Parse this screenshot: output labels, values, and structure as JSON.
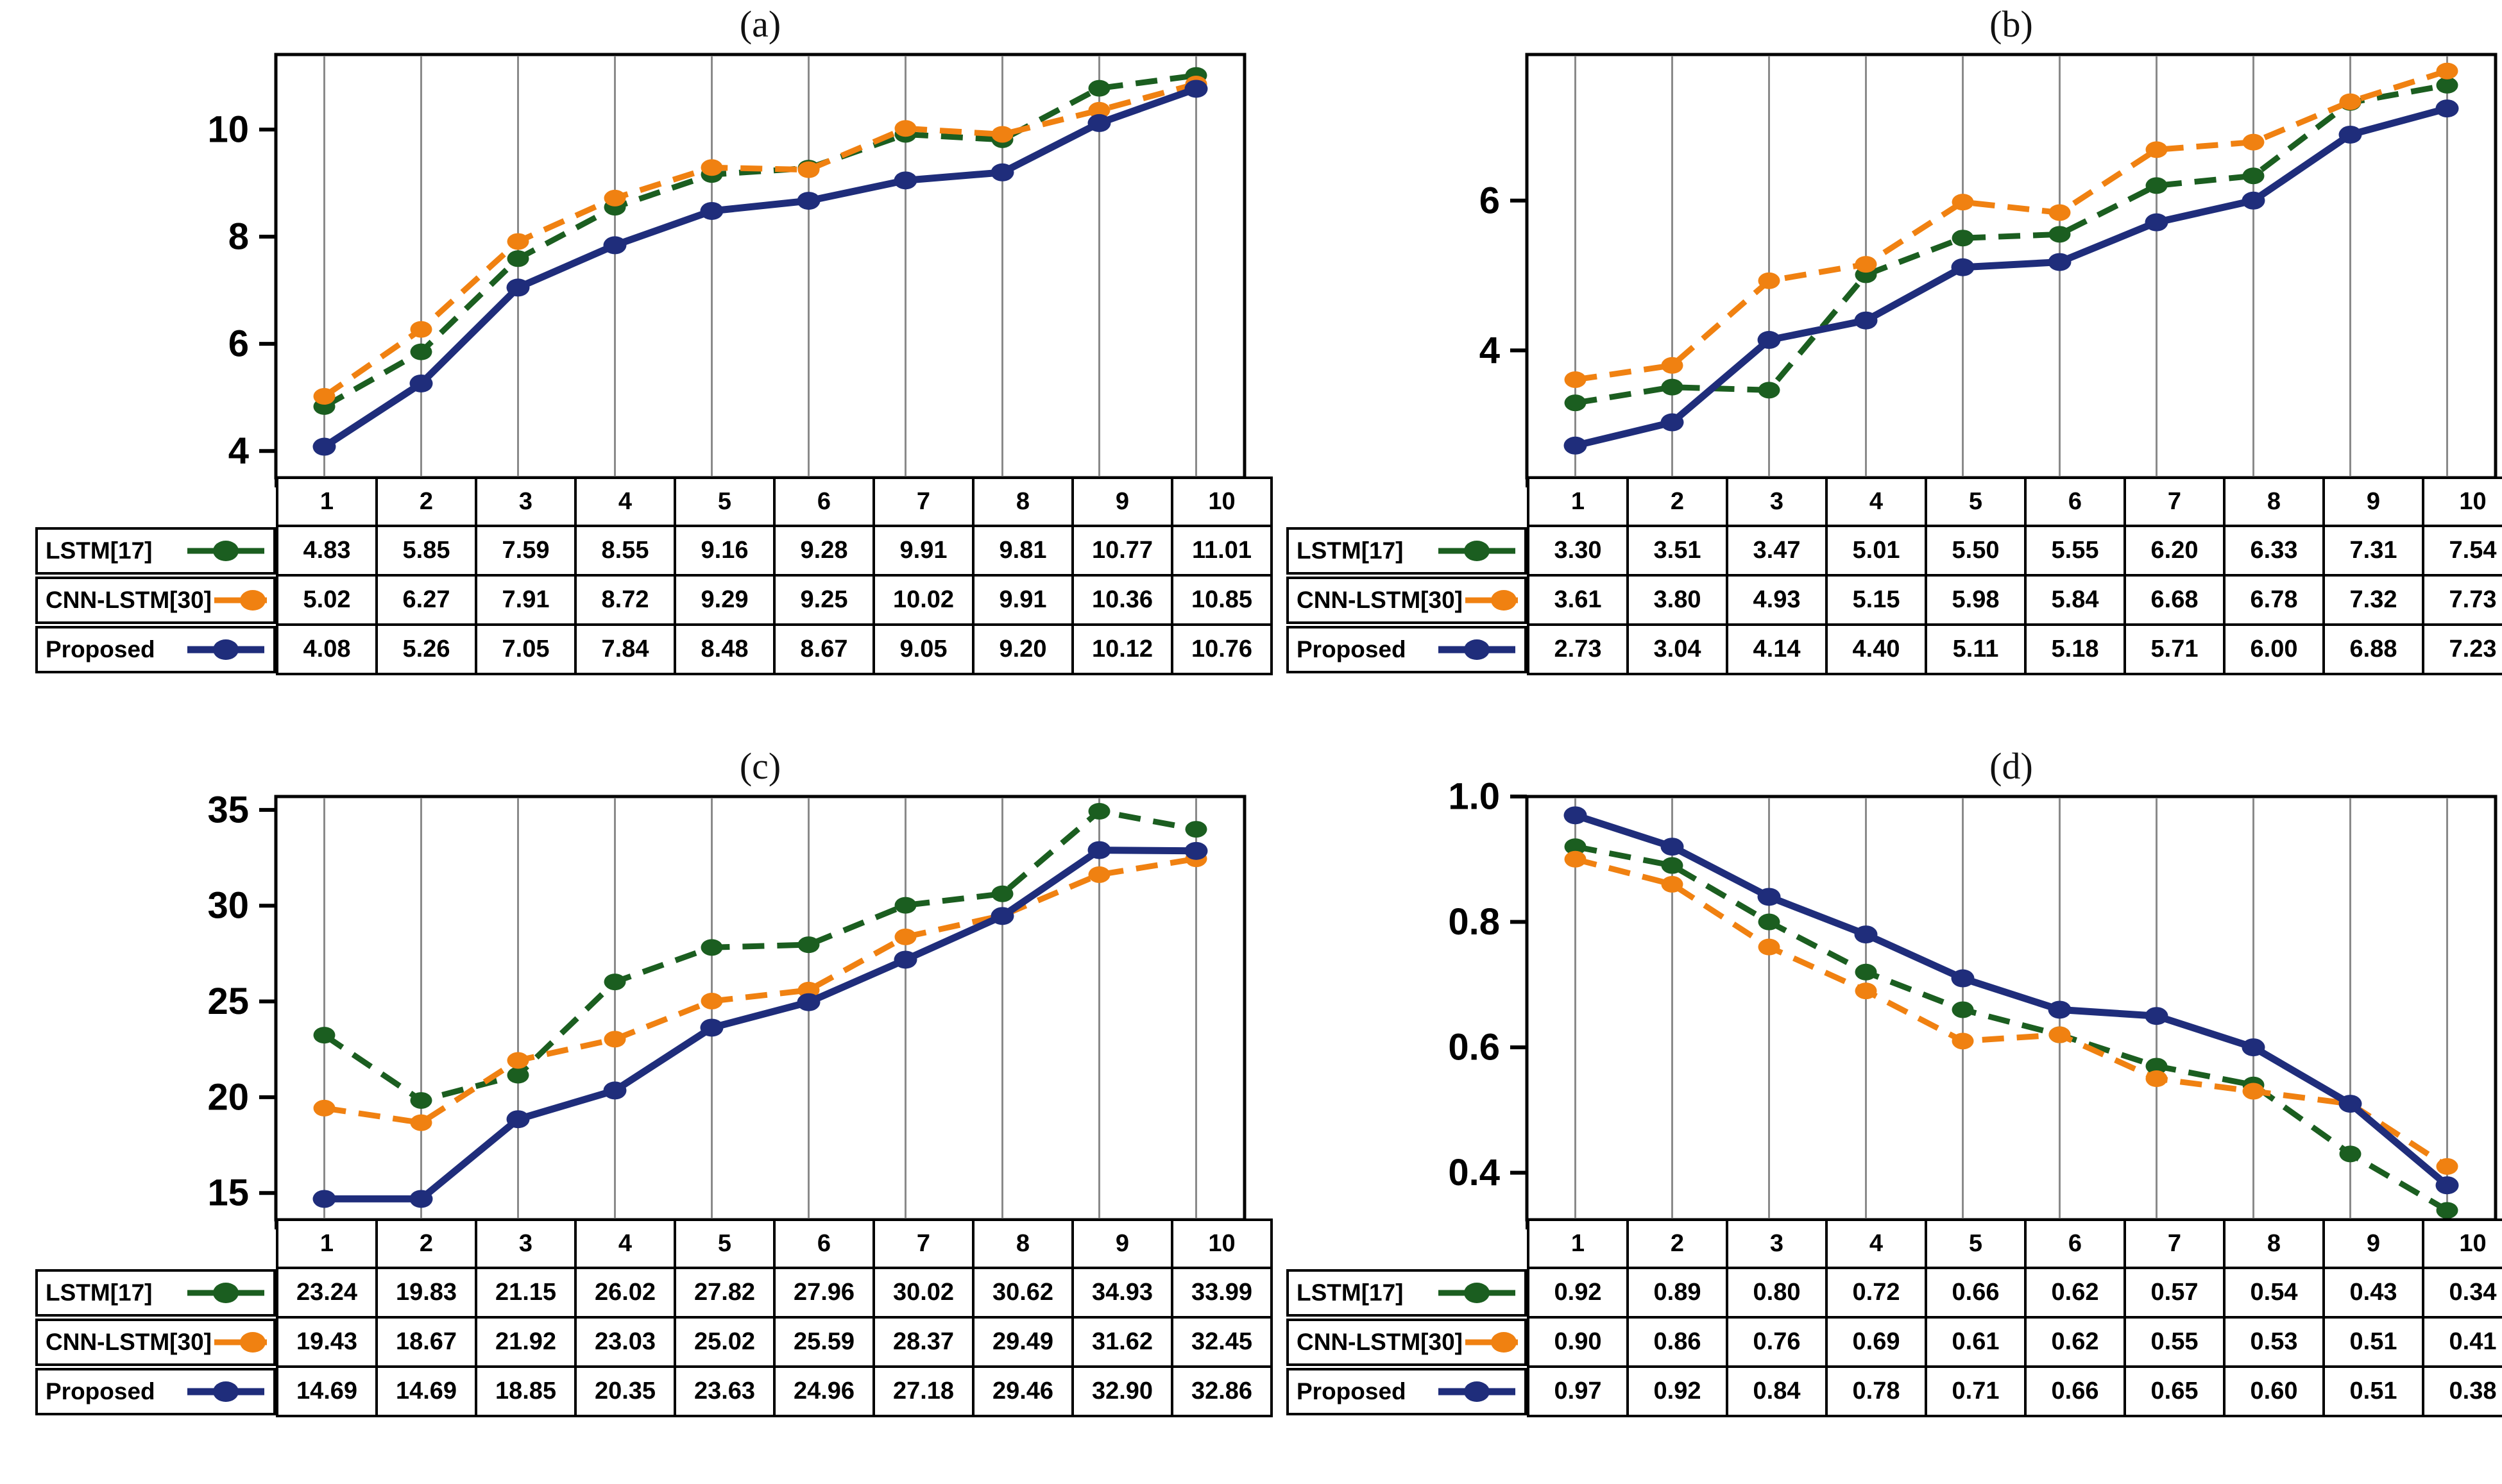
{
  "figure": {
    "background": "#ffffff",
    "series_names": [
      "LSTM[17]",
      "CNN-LSTM[30]",
      "Proposed"
    ],
    "x_categories": [
      "1",
      "2",
      "3",
      "4",
      "5",
      "6",
      "7",
      "8",
      "9",
      "10"
    ]
  },
  "colors": {
    "lstm": "#1b5e20",
    "cnn_lstm": "#f08111",
    "proposed": "#1f2d7b",
    "gridline": "#8a8a8a",
    "plot_border": "#000000",
    "text": "#000000"
  },
  "chart_data": [
    {
      "id": "a",
      "type": "line",
      "title": "(a)",
      "xlabel": "",
      "ylabel": "",
      "x": [
        "1",
        "2",
        "3",
        "4",
        "5",
        "6",
        "7",
        "8",
        "9",
        "10"
      ],
      "ylim": [
        3.5,
        11.4
      ],
      "yticks": [
        4,
        6,
        8,
        10
      ],
      "ytick_labels": [
        "4",
        "6",
        "8",
        "10"
      ],
      "grid": "vertical",
      "legend_position": "table-left",
      "series": [
        {
          "name": "LSTM[17]",
          "style": "dashed",
          "color": "#1b5e20",
          "values": [
            4.83,
            5.85,
            7.59,
            8.55,
            9.16,
            9.28,
            9.91,
            9.81,
            10.77,
            11.01
          ]
        },
        {
          "name": "CNN-LSTM[30]",
          "style": "dashed",
          "color": "#f08111",
          "values": [
            5.02,
            6.27,
            7.91,
            8.72,
            9.29,
            9.25,
            10.02,
            9.91,
            10.36,
            10.85
          ]
        },
        {
          "name": "Proposed",
          "style": "solid",
          "color": "#1f2d7b",
          "values": [
            4.08,
            5.26,
            7.05,
            7.84,
            8.48,
            8.67,
            9.05,
            9.2,
            10.12,
            10.76
          ]
        }
      ]
    },
    {
      "id": "b",
      "type": "line",
      "title": "(b)",
      "xlabel": "",
      "ylabel": "",
      "x": [
        "1",
        "2",
        "3",
        "4",
        "5",
        "6",
        "7",
        "8",
        "9",
        "10"
      ],
      "ylim": [
        2.3,
        7.95
      ],
      "yticks": [
        4,
        6
      ],
      "ytick_labels": [
        "4",
        "6"
      ],
      "grid": "vertical",
      "legend_position": "table-left",
      "series": [
        {
          "name": "LSTM[17]",
          "style": "dashed",
          "color": "#1b5e20",
          "values": [
            3.3,
            3.51,
            3.47,
            5.01,
            5.5,
            5.55,
            6.2,
            6.33,
            7.31,
            7.54
          ]
        },
        {
          "name": "CNN-LSTM[30]",
          "style": "dashed",
          "color": "#f08111",
          "values": [
            3.61,
            3.8,
            4.93,
            5.15,
            5.98,
            5.84,
            6.68,
            6.78,
            7.32,
            7.73
          ]
        },
        {
          "name": "Proposed",
          "style": "solid",
          "color": "#1f2d7b",
          "values": [
            2.73,
            3.04,
            4.14,
            4.4,
            5.11,
            5.18,
            5.71,
            6.0,
            6.88,
            7.23
          ]
        }
      ]
    },
    {
      "id": "c",
      "type": "line",
      "title": "(c)",
      "xlabel": "",
      "ylabel": "",
      "x": [
        "1",
        "2",
        "3",
        "4",
        "5",
        "6",
        "7",
        "8",
        "9",
        "10"
      ],
      "ylim": [
        13.6,
        35.7
      ],
      "yticks": [
        15,
        20,
        25,
        30,
        35
      ],
      "ytick_labels": [
        "15",
        "20",
        "25",
        "30",
        "35"
      ],
      "grid": "vertical",
      "legend_position": "table-left",
      "series": [
        {
          "name": "LSTM[17]",
          "style": "dashed",
          "color": "#1b5e20",
          "values": [
            23.24,
            19.83,
            21.15,
            26.02,
            27.82,
            27.96,
            30.02,
            30.62,
            34.93,
            33.99
          ]
        },
        {
          "name": "CNN-LSTM[30]",
          "style": "dashed",
          "color": "#f08111",
          "values": [
            19.43,
            18.67,
            21.92,
            23.03,
            25.02,
            25.59,
            28.37,
            29.49,
            31.62,
            32.45
          ]
        },
        {
          "name": "Proposed",
          "style": "solid",
          "color": "#1f2d7b",
          "values": [
            14.69,
            14.69,
            18.85,
            20.35,
            23.63,
            24.96,
            27.18,
            29.46,
            32.9,
            32.86
          ]
        }
      ]
    },
    {
      "id": "d",
      "type": "line",
      "title": "(d)",
      "xlabel": "",
      "ylabel": "",
      "x": [
        "1",
        "2",
        "3",
        "4",
        "5",
        "6",
        "7",
        "8",
        "9",
        "10"
      ],
      "ylim": [
        0.325,
        1.0
      ],
      "yticks": [
        0.4,
        0.6,
        0.8,
        1.0
      ],
      "ytick_labels": [
        "0.4",
        "0.6",
        "0.8",
        "1.0"
      ],
      "grid": "vertical",
      "legend_position": "table-left",
      "series": [
        {
          "name": "LSTM[17]",
          "style": "dashed",
          "color": "#1b5e20",
          "values": [
            0.92,
            0.89,
            0.8,
            0.72,
            0.66,
            0.62,
            0.57,
            0.54,
            0.43,
            0.34
          ]
        },
        {
          "name": "CNN-LSTM[30]",
          "style": "dashed",
          "color": "#f08111",
          "values": [
            0.9,
            0.86,
            0.76,
            0.69,
            0.61,
            0.62,
            0.55,
            0.53,
            0.51,
            0.41
          ]
        },
        {
          "name": "Proposed",
          "style": "solid",
          "color": "#1f2d7b",
          "values": [
            0.97,
            0.92,
            0.84,
            0.78,
            0.71,
            0.66,
            0.65,
            0.6,
            0.51,
            0.38
          ]
        }
      ]
    }
  ]
}
